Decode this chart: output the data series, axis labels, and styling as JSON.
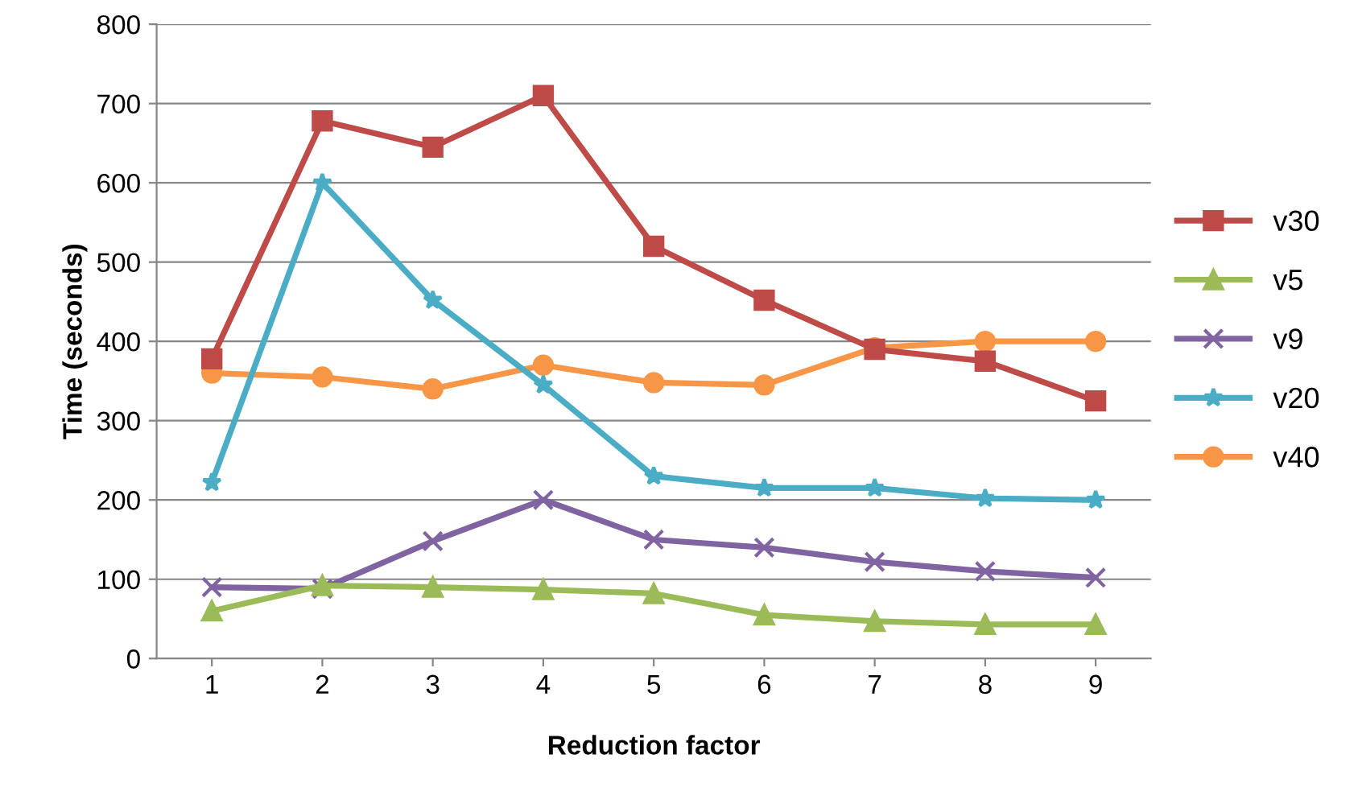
{
  "chart_data": {
    "type": "line",
    "xlabel": "Reduction factor",
    "ylabel": "Time (seconds)",
    "categories": [
      "1",
      "2",
      "3",
      "4",
      "5",
      "6",
      "7",
      "8",
      "9"
    ],
    "ylim": [
      0,
      800
    ],
    "yticks": [
      0,
      100,
      200,
      300,
      400,
      500,
      600,
      700,
      800
    ],
    "grid": "y",
    "legend": "right",
    "line_style": "solid",
    "series": [
      {
        "name": "v30",
        "color": "#be4b48",
        "marker": "square",
        "values": [
          378,
          678,
          645,
          710,
          520,
          452,
          390,
          375,
          325
        ]
      },
      {
        "name": "v5",
        "color": "#9bbb59",
        "marker": "triangle",
        "values": [
          60,
          92,
          90,
          87,
          82,
          55,
          47,
          43,
          43
        ]
      },
      {
        "name": "v9",
        "color": "#8064a2",
        "marker": "cross",
        "values": [
          90,
          88,
          148,
          200,
          150,
          140,
          122,
          110,
          102
        ]
      },
      {
        "name": "v20",
        "color": "#4bacc6",
        "marker": "star",
        "values": [
          222,
          600,
          452,
          345,
          230,
          215,
          215,
          202,
          200
        ]
      },
      {
        "name": "v40",
        "color": "#f79646",
        "marker": "circle",
        "values": [
          360,
          355,
          340,
          370,
          348,
          345,
          392,
          400,
          400
        ]
      }
    ]
  }
}
